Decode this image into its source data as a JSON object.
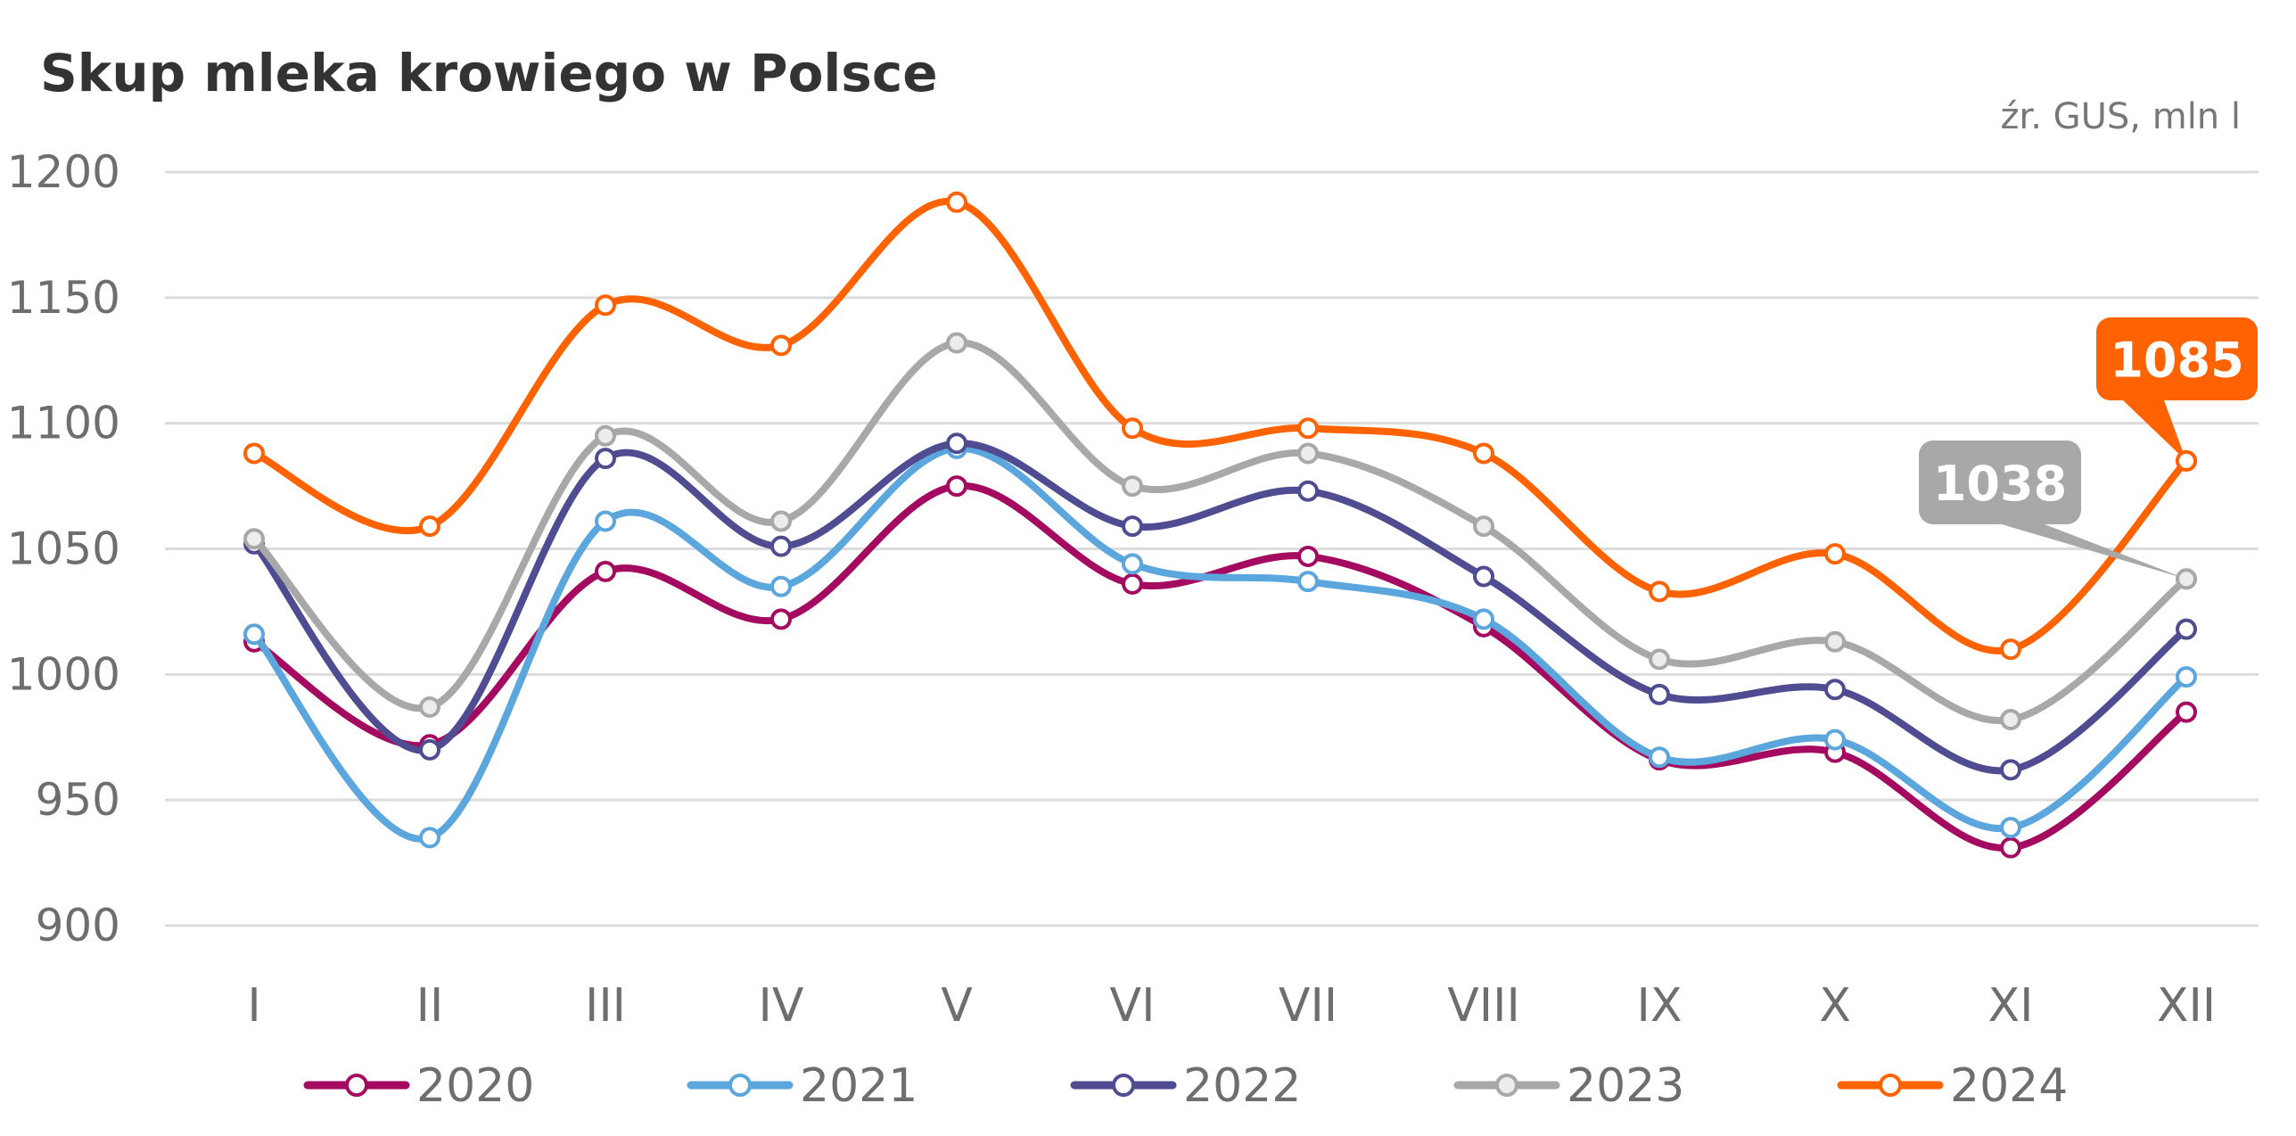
{
  "chart_data": {
    "type": "line",
    "title": "Skup mleka krowiego w Polsce",
    "source_note": "źr. GUS, mln l",
    "categories": [
      "I",
      "II",
      "III",
      "IV",
      "V",
      "VI",
      "VII",
      "VIII",
      "IX",
      "X",
      "XI",
      "XII"
    ],
    "ylim": [
      900,
      1200
    ],
    "yticks": [
      900,
      950,
      1000,
      1050,
      1100,
      1150,
      1200
    ],
    "grid": true,
    "legend_position": "bottom",
    "series": [
      {
        "name": "2020",
        "color": "#a50a61",
        "marker_fill": "#ffffff",
        "values": [
          1013,
          972,
          1041,
          1022,
          1075,
          1036,
          1047,
          1019,
          966,
          969,
          931,
          985
        ]
      },
      {
        "name": "2021",
        "color": "#5ba6dd",
        "marker_fill": "#ffffff",
        "values": [
          1016,
          935,
          1061,
          1035,
          1090,
          1044,
          1037,
          1022,
          967,
          974,
          939,
          999
        ]
      },
      {
        "name": "2022",
        "color": "#4f4c92",
        "marker_fill": "#ffffff",
        "values": [
          1052,
          970,
          1086,
          1051,
          1092,
          1059,
          1073,
          1039,
          992,
          994,
          962,
          1018
        ]
      },
      {
        "name": "2023",
        "color": "#a8a8a8",
        "marker_fill": "#ececec",
        "values": [
          1054,
          987,
          1095,
          1061,
          1132,
          1075,
          1088,
          1059,
          1006,
          1013,
          982,
          1038
        ]
      },
      {
        "name": "2024",
        "color": "#ff6200",
        "marker_fill": "#ffffff",
        "values": [
          1088,
          1059,
          1147,
          1131,
          1188,
          1098,
          1098,
          1088,
          1033,
          1048,
          1010,
          1085
        ]
      }
    ],
    "annotations": [
      {
        "series": "2023",
        "category": "XII",
        "text": "1038"
      },
      {
        "series": "2024",
        "category": "XII",
        "text": "1085"
      }
    ]
  }
}
